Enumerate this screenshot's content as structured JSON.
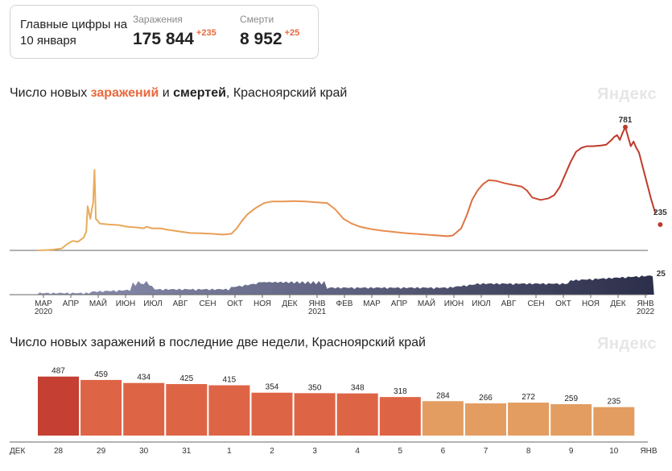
{
  "summary": {
    "title": "Главные цифры на 10 января",
    "infections": {
      "label": "Заражения",
      "value": "175 844",
      "delta": "+235"
    },
    "deaths": {
      "label": "Смерти",
      "value": "8 952",
      "delta": "+25"
    }
  },
  "chart1": {
    "title_pre": "Число новых ",
    "title_infections": "заражений",
    "title_mid": " и ",
    "title_deaths": "смертей",
    "title_post": ", Красноярский край",
    "watermark": "Яндекс",
    "colors": {
      "early": "#e8b15e",
      "mid": "#e88a4e",
      "late": "#c0392b",
      "deaths": "#2c2f4a",
      "axis": "#666666"
    }
  },
  "chart2": {
    "title": "Число новых заражений в последние две недели, Красноярский край",
    "watermark": "Яндекс",
    "start_label": "ДЕК",
    "end_label": "ЯНВ"
  },
  "chart_data": [
    {
      "type": "line",
      "x_ticks": [
        {
          "label": "МАР",
          "sub": "2020"
        },
        {
          "label": "АПР"
        },
        {
          "label": "МАЙ"
        },
        {
          "label": "ИЮН"
        },
        {
          "label": "ИЮЛ"
        },
        {
          "label": "АВГ"
        },
        {
          "label": "СЕН"
        },
        {
          "label": "ОКТ"
        },
        {
          "label": "НОЯ"
        },
        {
          "label": "ДЕК"
        },
        {
          "label": "ЯНВ",
          "sub": "2021"
        },
        {
          "label": "ФЕВ"
        },
        {
          "label": "МАР"
        },
        {
          "label": "АПР"
        },
        {
          "label": "МАЙ"
        },
        {
          "label": "ИЮН"
        },
        {
          "label": "ИЮЛ"
        },
        {
          "label": "АВГ"
        },
        {
          "label": "СЕН"
        },
        {
          "label": "ОКТ"
        },
        {
          "label": "НОЯ"
        },
        {
          "label": "ДЕК"
        },
        {
          "label": "ЯНВ",
          "sub": "2022"
        }
      ],
      "series": [
        {
          "name": "заражений",
          "points": [
            [
              0,
              0
            ],
            [
              0.3,
              2
            ],
            [
              0.6,
              5
            ],
            [
              0.9,
              12
            ],
            [
              1.1,
              40
            ],
            [
              1.3,
              60
            ],
            [
              1.5,
              55
            ],
            [
              1.7,
              80
            ],
            [
              1.8,
              120
            ],
            [
              1.85,
              280
            ],
            [
              1.9,
              240
            ],
            [
              1.95,
              200
            ],
            [
              2.0,
              260
            ],
            [
              2.05,
              300
            ],
            [
              2.1,
              510
            ],
            [
              2.15,
              200
            ],
            [
              2.2,
              190
            ],
            [
              2.3,
              170
            ],
            [
              2.6,
              165
            ],
            [
              3.0,
              160
            ],
            [
              3.3,
              150
            ],
            [
              3.7,
              145
            ],
            [
              3.9,
              140
            ],
            [
              4.0,
              150
            ],
            [
              4.2,
              140
            ],
            [
              4.5,
              140
            ],
            [
              4.8,
              130
            ],
            [
              5.2,
              120
            ],
            [
              5.6,
              110
            ],
            [
              6.0,
              108
            ],
            [
              6.4,
              105
            ],
            [
              6.8,
              100
            ],
            [
              7.1,
              105
            ],
            [
              7.3,
              140
            ],
            [
              7.5,
              190
            ],
            [
              7.7,
              230
            ],
            [
              8.0,
              270
            ],
            [
              8.3,
              300
            ],
            [
              8.6,
              310
            ],
            [
              9.0,
              310
            ],
            [
              9.4,
              312
            ],
            [
              9.8,
              310
            ],
            [
              10.2,
              305
            ],
            [
              10.6,
              300
            ],
            [
              10.9,
              260
            ],
            [
              11.2,
              200
            ],
            [
              11.5,
              170
            ],
            [
              11.8,
              150
            ],
            [
              12.2,
              135
            ],
            [
              12.6,
              125
            ],
            [
              13.0,
              118
            ],
            [
              13.4,
              110
            ],
            [
              13.8,
              105
            ],
            [
              14.2,
              100
            ],
            [
              14.6,
              95
            ],
            [
              15.0,
              90
            ],
            [
              15.2,
              95
            ],
            [
              15.5,
              140
            ],
            [
              15.7,
              220
            ],
            [
              15.9,
              320
            ],
            [
              16.1,
              380
            ],
            [
              16.3,
              420
            ],
            [
              16.5,
              445
            ],
            [
              16.8,
              440
            ],
            [
              17.1,
              425
            ],
            [
              17.4,
              415
            ],
            [
              17.7,
              405
            ],
            [
              17.9,
              380
            ],
            [
              18.1,
              335
            ],
            [
              18.4,
              320
            ],
            [
              18.7,
              330
            ],
            [
              18.9,
              350
            ],
            [
              19.1,
              400
            ],
            [
              19.3,
              480
            ],
            [
              19.5,
              560
            ],
            [
              19.7,
              625
            ],
            [
              19.9,
              650
            ],
            [
              20.1,
              660
            ],
            [
              20.3,
              660
            ],
            [
              20.6,
              665
            ],
            [
              20.8,
              670
            ],
            [
              21.0,
              700
            ],
            [
              21.1,
              720
            ],
            [
              21.2,
              730
            ],
            [
              21.3,
              700
            ],
            [
              21.4,
              745
            ],
            [
              21.5,
              781
            ],
            [
              21.6,
              720
            ],
            [
              21.7,
              660
            ],
            [
              21.8,
              690
            ],
            [
              21.9,
              650
            ],
            [
              22.0,
              620
            ],
            [
              22.15,
              520
            ],
            [
              22.3,
              420
            ],
            [
              22.45,
              320
            ],
            [
              22.6,
              235
            ]
          ],
          "peak_label": "781",
          "last_label": "235"
        },
        {
          "name": "смертей",
          "last_label": "25"
        }
      ]
    },
    {
      "type": "bar",
      "categories": [
        "28",
        "29",
        "30",
        "31",
        "1",
        "2",
        "3",
        "4",
        "5",
        "6",
        "7",
        "8",
        "9",
        "10"
      ],
      "values": [
        487,
        459,
        434,
        425,
        415,
        354,
        350,
        348,
        318,
        284,
        266,
        272,
        259,
        235
      ],
      "category_colors": [
        "#333333",
        "#333333",
        "#333333",
        "#333333",
        "#d9442b",
        "#d9442b",
        "#333333",
        "#333333",
        "#333333",
        "#333333",
        "#333333",
        "#d9442b",
        "#d9442b",
        "#333333"
      ],
      "bar_colors": [
        "#c53f32",
        "#de6446",
        "#de6446",
        "#de6446",
        "#de6446",
        "#de6446",
        "#de6446",
        "#de6446",
        "#de6446",
        "#e39d61",
        "#e39d61",
        "#e39d61",
        "#e39d61",
        "#e39d61"
      ]
    }
  ]
}
